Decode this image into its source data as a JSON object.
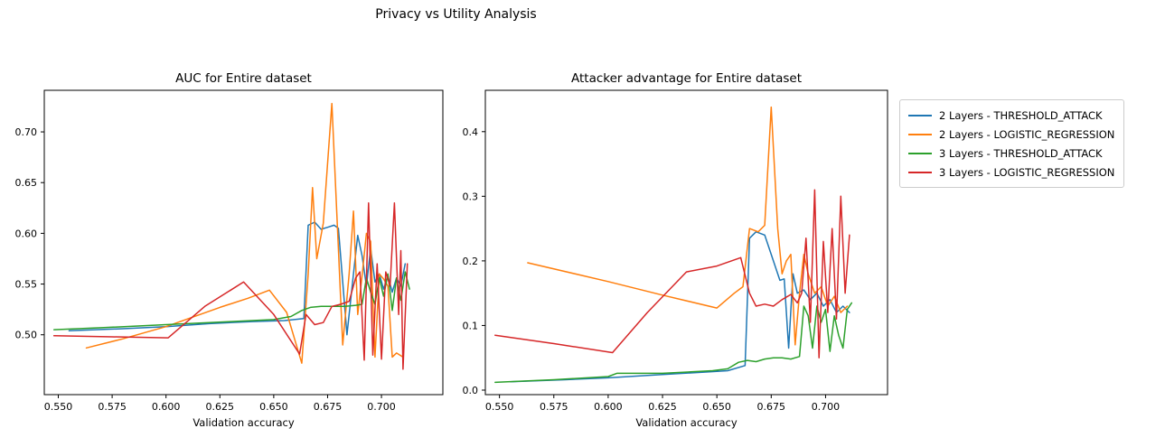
{
  "suptitle": "Privacy vs Utility Analysis",
  "legend": {
    "items": [
      {
        "label": "2 Layers - THRESHOLD_ATTACK",
        "color": "#1f77b4"
      },
      {
        "label": "2 Layers - LOGISTIC_REGRESSION",
        "color": "#ff7f0e"
      },
      {
        "label": "3 Layers - THRESHOLD_ATTACK",
        "color": "#2ca02c"
      },
      {
        "label": "3 Layers - LOGISTIC_REGRESSION",
        "color": "#d62728"
      }
    ]
  },
  "chart_data": [
    {
      "type": "line",
      "title": "AUC for Entire dataset",
      "xlabel": "Validation accuracy",
      "ylabel": "",
      "xlim": [
        0.5435,
        0.7285
      ],
      "ylim": [
        0.441,
        0.741
      ],
      "grid": false,
      "xticks": {
        "values": [
          0.55,
          0.575,
          0.6,
          0.625,
          0.65,
          0.675,
          0.7
        ],
        "labels": [
          "0.550",
          "0.575",
          "0.600",
          "0.625",
          "0.650",
          "0.675",
          "0.700"
        ]
      },
      "yticks": {
        "values": [
          0.5,
          0.55,
          0.6,
          0.65,
          0.7
        ],
        "labels": [
          "0.50",
          "0.55",
          "0.60",
          "0.65",
          "0.70"
        ]
      },
      "series": [
        {
          "name": "2 Layers - THRESHOLD_ATTACK",
          "color": "#1f77b4",
          "points": [
            [
              0.555,
              0.504
            ],
            [
              0.58,
              0.506
            ],
            [
              0.6,
              0.508
            ],
            [
              0.62,
              0.511
            ],
            [
              0.64,
              0.513
            ],
            [
              0.655,
              0.514
            ],
            [
              0.664,
              0.516
            ],
            [
              0.666,
              0.608
            ],
            [
              0.669,
              0.611
            ],
            [
              0.672,
              0.604
            ],
            [
              0.675,
              0.606
            ],
            [
              0.678,
              0.608
            ],
            [
              0.68,
              0.605
            ],
            [
              0.682,
              0.552
            ],
            [
              0.684,
              0.5
            ],
            [
              0.687,
              0.56
            ],
            [
              0.689,
              0.598
            ],
            [
              0.691,
              0.578
            ],
            [
              0.693,
              0.548
            ],
            [
              0.695,
              0.585
            ],
            [
              0.697,
              0.552
            ],
            [
              0.699,
              0.56
            ],
            [
              0.701,
              0.545
            ],
            [
              0.703,
              0.558
            ],
            [
              0.705,
              0.542
            ],
            [
              0.707,
              0.556
            ],
            [
              0.709,
              0.548
            ],
            [
              0.711,
              0.57
            ]
          ]
        },
        {
          "name": "2 Layers - LOGISTIC_REGRESSION",
          "color": "#ff7f0e",
          "points": [
            [
              0.563,
              0.487
            ],
            [
              0.58,
              0.496
            ],
            [
              0.6,
              0.508
            ],
            [
              0.625,
              0.527
            ],
            [
              0.638,
              0.536
            ],
            [
              0.648,
              0.544
            ],
            [
              0.656,
              0.522
            ],
            [
              0.663,
              0.472
            ],
            [
              0.666,
              0.56
            ],
            [
              0.668,
              0.645
            ],
            [
              0.67,
              0.575
            ],
            [
              0.673,
              0.61
            ],
            [
              0.677,
              0.728
            ],
            [
              0.68,
              0.585
            ],
            [
              0.682,
              0.49
            ],
            [
              0.685,
              0.56
            ],
            [
              0.687,
              0.622
            ],
            [
              0.689,
              0.52
            ],
            [
              0.691,
              0.558
            ],
            [
              0.693,
              0.6
            ],
            [
              0.695,
              0.592
            ],
            [
              0.697,
              0.478
            ],
            [
              0.699,
              0.56
            ],
            [
              0.701,
              0.555
            ],
            [
              0.703,
              0.548
            ],
            [
              0.705,
              0.478
            ],
            [
              0.707,
              0.482
            ],
            [
              0.71,
              0.478
            ]
          ]
        },
        {
          "name": "3 Layers - THRESHOLD_ATTACK",
          "color": "#2ca02c",
          "points": [
            [
              0.548,
              0.505
            ],
            [
              0.57,
              0.507
            ],
            [
              0.6,
              0.51
            ],
            [
              0.63,
              0.513
            ],
            [
              0.65,
              0.515
            ],
            [
              0.658,
              0.518
            ],
            [
              0.663,
              0.524
            ],
            [
              0.667,
              0.527
            ],
            [
              0.672,
              0.528
            ],
            [
              0.678,
              0.528
            ],
            [
              0.683,
              0.528
            ],
            [
              0.688,
              0.529
            ],
            [
              0.691,
              0.53
            ],
            [
              0.693,
              0.556
            ],
            [
              0.695,
              0.542
            ],
            [
              0.697,
              0.53
            ],
            [
              0.699,
              0.556
            ],
            [
              0.701,
              0.538
            ],
            [
              0.703,
              0.56
            ],
            [
              0.705,
              0.524
            ],
            [
              0.707,
              0.556
            ],
            [
              0.709,
              0.534
            ],
            [
              0.711,
              0.562
            ],
            [
              0.713,
              0.545
            ]
          ]
        },
        {
          "name": "3 Layers - LOGISTIC_REGRESSION",
          "color": "#d62728",
          "points": [
            [
              0.548,
              0.499
            ],
            [
              0.575,
              0.498
            ],
            [
              0.601,
              0.497
            ],
            [
              0.618,
              0.528
            ],
            [
              0.636,
              0.552
            ],
            [
              0.65,
              0.52
            ],
            [
              0.662,
              0.481
            ],
            [
              0.665,
              0.52
            ],
            [
              0.669,
              0.51
            ],
            [
              0.673,
              0.512
            ],
            [
              0.677,
              0.528
            ],
            [
              0.681,
              0.53
            ],
            [
              0.685,
              0.533
            ],
            [
              0.688,
              0.556
            ],
            [
              0.69,
              0.562
            ],
            [
              0.692,
              0.475
            ],
            [
              0.694,
              0.63
            ],
            [
              0.696,
              0.48
            ],
            [
              0.698,
              0.57
            ],
            [
              0.7,
              0.476
            ],
            [
              0.702,
              0.562
            ],
            [
              0.704,
              0.548
            ],
            [
              0.706,
              0.63
            ],
            [
              0.708,
              0.52
            ],
            [
              0.709,
              0.583
            ],
            [
              0.71,
              0.466
            ],
            [
              0.712,
              0.57
            ]
          ]
        }
      ]
    },
    {
      "type": "line",
      "title": "Attacker advantage for Entire dataset",
      "xlabel": "Validation accuracy",
      "ylabel": "",
      "xlim": [
        0.5435,
        0.7285
      ],
      "ylim": [
        -0.007,
        0.464
      ],
      "grid": false,
      "xticks": {
        "values": [
          0.55,
          0.575,
          0.6,
          0.625,
          0.65,
          0.675,
          0.7
        ],
        "labels": [
          "0.550",
          "0.575",
          "0.600",
          "0.625",
          "0.650",
          "0.675",
          "0.700"
        ]
      },
      "yticks": {
        "values": [
          0.0,
          0.1,
          0.2,
          0.3,
          0.4
        ],
        "labels": [
          "0.0",
          "0.1",
          "0.2",
          "0.3",
          "0.4"
        ]
      },
      "series": [
        {
          "name": "2 Layers - THRESHOLD_ATTACK",
          "color": "#1f77b4",
          "points": [
            [
              0.555,
              0.013
            ],
            [
              0.58,
              0.016
            ],
            [
              0.6,
              0.019
            ],
            [
              0.625,
              0.024
            ],
            [
              0.645,
              0.028
            ],
            [
              0.655,
              0.03
            ],
            [
              0.663,
              0.038
            ],
            [
              0.665,
              0.235
            ],
            [
              0.668,
              0.245
            ],
            [
              0.672,
              0.24
            ],
            [
              0.676,
              0.2
            ],
            [
              0.679,
              0.17
            ],
            [
              0.681,
              0.172
            ],
            [
              0.683,
              0.065
            ],
            [
              0.685,
              0.18
            ],
            [
              0.687,
              0.15
            ],
            [
              0.69,
              0.155
            ],
            [
              0.693,
              0.14
            ],
            [
              0.696,
              0.15
            ],
            [
              0.699,
              0.13
            ],
            [
              0.702,
              0.14
            ],
            [
              0.705,
              0.12
            ],
            [
              0.708,
              0.13
            ],
            [
              0.711,
              0.12
            ]
          ]
        },
        {
          "name": "2 Layers - LOGISTIC_REGRESSION",
          "color": "#ff7f0e",
          "points": [
            [
              0.563,
              0.197
            ],
            [
              0.6,
              0.168
            ],
            [
              0.625,
              0.147
            ],
            [
              0.65,
              0.127
            ],
            [
              0.658,
              0.15
            ],
            [
              0.662,
              0.16
            ],
            [
              0.665,
              0.25
            ],
            [
              0.669,
              0.245
            ],
            [
              0.672,
              0.255
            ],
            [
              0.675,
              0.438
            ],
            [
              0.678,
              0.25
            ],
            [
              0.68,
              0.18
            ],
            [
              0.682,
              0.2
            ],
            [
              0.684,
              0.21
            ],
            [
              0.686,
              0.07
            ],
            [
              0.688,
              0.15
            ],
            [
              0.69,
              0.21
            ],
            [
              0.692,
              0.18
            ],
            [
              0.695,
              0.15
            ],
            [
              0.698,
              0.16
            ],
            [
              0.701,
              0.13
            ],
            [
              0.704,
              0.145
            ],
            [
              0.707,
              0.12
            ],
            [
              0.71,
              0.13
            ]
          ]
        },
        {
          "name": "3 Layers - THRESHOLD_ATTACK",
          "color": "#2ca02c",
          "points": [
            [
              0.548,
              0.012
            ],
            [
              0.575,
              0.016
            ],
            [
              0.6,
              0.021
            ],
            [
              0.604,
              0.026
            ],
            [
              0.625,
              0.026
            ],
            [
              0.648,
              0.03
            ],
            [
              0.655,
              0.033
            ],
            [
              0.66,
              0.043
            ],
            [
              0.664,
              0.046
            ],
            [
              0.668,
              0.044
            ],
            [
              0.672,
              0.048
            ],
            [
              0.676,
              0.05
            ],
            [
              0.68,
              0.05
            ],
            [
              0.684,
              0.048
            ],
            [
              0.688,
              0.052
            ],
            [
              0.69,
              0.13
            ],
            [
              0.692,
              0.115
            ],
            [
              0.694,
              0.065
            ],
            [
              0.696,
              0.13
            ],
            [
              0.698,
              0.105
            ],
            [
              0.7,
              0.125
            ],
            [
              0.702,
              0.06
            ],
            [
              0.704,
              0.115
            ],
            [
              0.706,
              0.085
            ],
            [
              0.708,
              0.065
            ],
            [
              0.71,
              0.125
            ],
            [
              0.712,
              0.135
            ]
          ]
        },
        {
          "name": "3 Layers - LOGISTIC_REGRESSION",
          "color": "#d62728",
          "points": [
            [
              0.548,
              0.085
            ],
            [
              0.575,
              0.072
            ],
            [
              0.602,
              0.058
            ],
            [
              0.618,
              0.12
            ],
            [
              0.636,
              0.183
            ],
            [
              0.65,
              0.192
            ],
            [
              0.661,
              0.205
            ],
            [
              0.665,
              0.15
            ],
            [
              0.668,
              0.13
            ],
            [
              0.672,
              0.133
            ],
            [
              0.676,
              0.13
            ],
            [
              0.68,
              0.14
            ],
            [
              0.684,
              0.148
            ],
            [
              0.687,
              0.135
            ],
            [
              0.689,
              0.15
            ],
            [
              0.691,
              0.235
            ],
            [
              0.693,
              0.105
            ],
            [
              0.695,
              0.31
            ],
            [
              0.697,
              0.05
            ],
            [
              0.699,
              0.23
            ],
            [
              0.701,
              0.12
            ],
            [
              0.703,
              0.25
            ],
            [
              0.705,
              0.11
            ],
            [
              0.707,
              0.3
            ],
            [
              0.709,
              0.15
            ],
            [
              0.711,
              0.24
            ]
          ]
        }
      ]
    }
  ]
}
